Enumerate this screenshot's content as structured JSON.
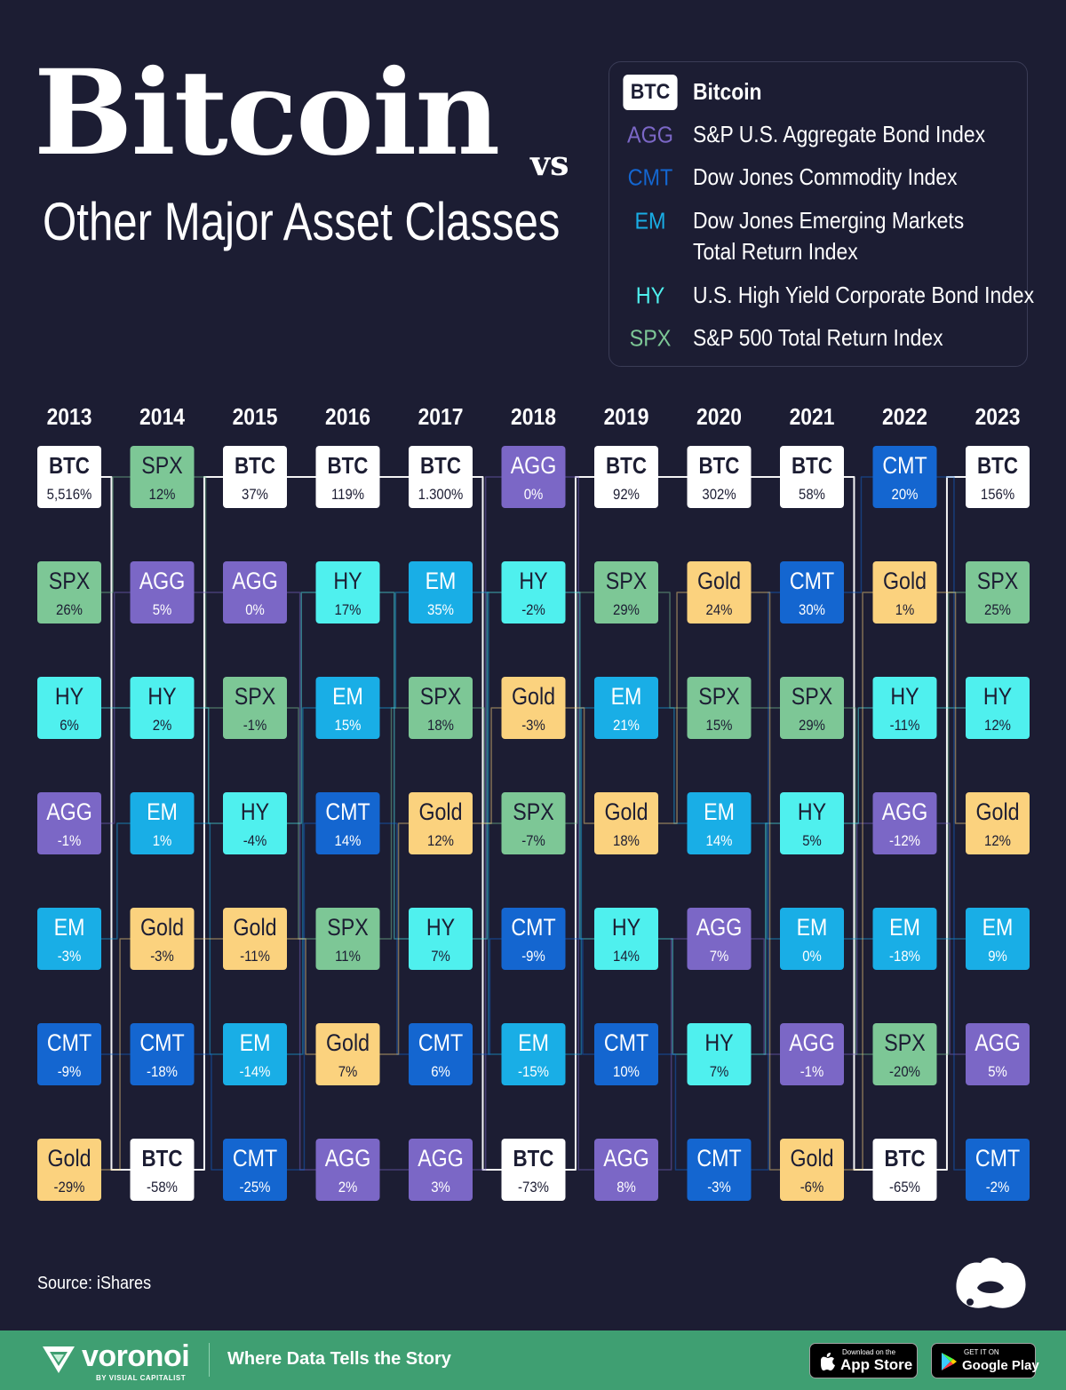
{
  "header": {
    "title": "Bitcoin",
    "title_suffix": "vs",
    "subtitle": "Other Major Asset Classes"
  },
  "legend": {
    "items": [
      {
        "code": "BTC",
        "label": "Bitcoin"
      },
      {
        "code": "AGG",
        "label": "S&P U.S. Aggregate Bond Index"
      },
      {
        "code": "CMT",
        "label": "Dow Jones Commodity Index"
      },
      {
        "code": "EM",
        "label": "Dow Jones Emerging Markets",
        "label_line2": "Total Return Index"
      },
      {
        "code": "HY",
        "label": "U.S. High Yield Corporate Bond Index"
      },
      {
        "code": "SPX",
        "label": "S&P 500 Total Return Index"
      }
    ]
  },
  "colors": {
    "background": "#1c1d33",
    "BTC": "#ffffff",
    "SPX": "#7dc796",
    "AGG": "#7b67c6",
    "HY": "#4ff0ee",
    "EM": "#19aee6",
    "CMT": "#1466d0",
    "Gold": "#fbd27e",
    "footer": "#3f9f72"
  },
  "chart_data": {
    "type": "table",
    "categories": [
      "2013",
      "2014",
      "2015",
      "2016",
      "2017",
      "2018",
      "2019",
      "2020",
      "2021",
      "2022",
      "2023"
    ],
    "columns": [
      {
        "year": "2013",
        "ranks": [
          {
            "asset": "BTC",
            "value": "5,516%"
          },
          {
            "asset": "SPX",
            "value": "26%"
          },
          {
            "asset": "HY",
            "value": "6%"
          },
          {
            "asset": "AGG",
            "value": "-1%"
          },
          {
            "asset": "EM",
            "value": "-3%"
          },
          {
            "asset": "CMT",
            "value": "-9%"
          },
          {
            "asset": "Gold",
            "value": "-29%"
          }
        ]
      },
      {
        "year": "2014",
        "ranks": [
          {
            "asset": "SPX",
            "value": "12%"
          },
          {
            "asset": "AGG",
            "value": "5%"
          },
          {
            "asset": "HY",
            "value": "2%"
          },
          {
            "asset": "EM",
            "value": "1%"
          },
          {
            "asset": "Gold",
            "value": "-3%"
          },
          {
            "asset": "CMT",
            "value": "-18%"
          },
          {
            "asset": "BTC",
            "value": "-58%"
          }
        ]
      },
      {
        "year": "2015",
        "ranks": [
          {
            "asset": "BTC",
            "value": "37%"
          },
          {
            "asset": "AGG",
            "value": "0%"
          },
          {
            "asset": "SPX",
            "value": "-1%"
          },
          {
            "asset": "HY",
            "value": "-4%"
          },
          {
            "asset": "Gold",
            "value": "-11%"
          },
          {
            "asset": "EM",
            "value": "-14%"
          },
          {
            "asset": "CMT",
            "value": "-25%"
          }
        ]
      },
      {
        "year": "2016",
        "ranks": [
          {
            "asset": "BTC",
            "value": "119%"
          },
          {
            "asset": "HY",
            "value": "17%"
          },
          {
            "asset": "EM",
            "value": "15%"
          },
          {
            "asset": "CMT",
            "value": "14%"
          },
          {
            "asset": "SPX",
            "value": "11%"
          },
          {
            "asset": "Gold",
            "value": "7%"
          },
          {
            "asset": "AGG",
            "value": "2%"
          }
        ]
      },
      {
        "year": "2017",
        "ranks": [
          {
            "asset": "BTC",
            "value": "1.300%"
          },
          {
            "asset": "EM",
            "value": "35%"
          },
          {
            "asset": "SPX",
            "value": "18%"
          },
          {
            "asset": "Gold",
            "value": "12%"
          },
          {
            "asset": "HY",
            "value": "7%"
          },
          {
            "asset": "CMT",
            "value": "6%"
          },
          {
            "asset": "AGG",
            "value": "3%"
          }
        ]
      },
      {
        "year": "2018",
        "ranks": [
          {
            "asset": "AGG",
            "value": "0%"
          },
          {
            "asset": "HY",
            "value": "-2%"
          },
          {
            "asset": "Gold",
            "value": "-3%"
          },
          {
            "asset": "SPX",
            "value": "-7%"
          },
          {
            "asset": "CMT",
            "value": "-9%"
          },
          {
            "asset": "EM",
            "value": "-15%"
          },
          {
            "asset": "BTC",
            "value": "-73%"
          }
        ]
      },
      {
        "year": "2019",
        "ranks": [
          {
            "asset": "BTC",
            "value": "92%"
          },
          {
            "asset": "SPX",
            "value": "29%"
          },
          {
            "asset": "EM",
            "value": "21%"
          },
          {
            "asset": "Gold",
            "value": "18%"
          },
          {
            "asset": "HY",
            "value": "14%"
          },
          {
            "asset": "CMT",
            "value": "10%"
          },
          {
            "asset": "AGG",
            "value": "8%"
          }
        ]
      },
      {
        "year": "2020",
        "ranks": [
          {
            "asset": "BTC",
            "value": "302%"
          },
          {
            "asset": "Gold",
            "value": "24%"
          },
          {
            "asset": "SPX",
            "value": "15%"
          },
          {
            "asset": "EM",
            "value": "14%"
          },
          {
            "asset": "AGG",
            "value": "7%"
          },
          {
            "asset": "HY",
            "value": "7%"
          },
          {
            "asset": "CMT",
            "value": "-3%"
          }
        ]
      },
      {
        "year": "2021",
        "ranks": [
          {
            "asset": "BTC",
            "value": "58%"
          },
          {
            "asset": "CMT",
            "value": "30%"
          },
          {
            "asset": "SPX",
            "value": "29%"
          },
          {
            "asset": "HY",
            "value": "5%"
          },
          {
            "asset": "EM",
            "value": "0%"
          },
          {
            "asset": "AGG",
            "value": "-1%"
          },
          {
            "asset": "Gold",
            "value": "-6%"
          }
        ]
      },
      {
        "year": "2022",
        "ranks": [
          {
            "asset": "CMT",
            "value": "20%"
          },
          {
            "asset": "Gold",
            "value": "1%"
          },
          {
            "asset": "HY",
            "value": "-11%"
          },
          {
            "asset": "AGG",
            "value": "-12%"
          },
          {
            "asset": "EM",
            "value": "-18%"
          },
          {
            "asset": "SPX",
            "value": "-20%"
          },
          {
            "asset": "BTC",
            "value": "-65%"
          }
        ]
      },
      {
        "year": "2023",
        "ranks": [
          {
            "asset": "BTC",
            "value": "156%"
          },
          {
            "asset": "SPX",
            "value": "25%"
          },
          {
            "asset": "HY",
            "value": "12%"
          },
          {
            "asset": "Gold",
            "value": "12%"
          },
          {
            "asset": "EM",
            "value": "9%"
          },
          {
            "asset": "AGG",
            "value": "5%"
          },
          {
            "asset": "CMT",
            "value": "-2%"
          }
        ]
      }
    ]
  },
  "source": "Source: iShares",
  "footer": {
    "brand": "voronoi",
    "brand_sub": "BY VISUAL CAPITALIST",
    "tagline": "Where Data Tells the Story",
    "app_store_small": "Download on the",
    "app_store_big": "App Store",
    "google_play_small": "GET IT ON",
    "google_play_big": "Google Play"
  }
}
